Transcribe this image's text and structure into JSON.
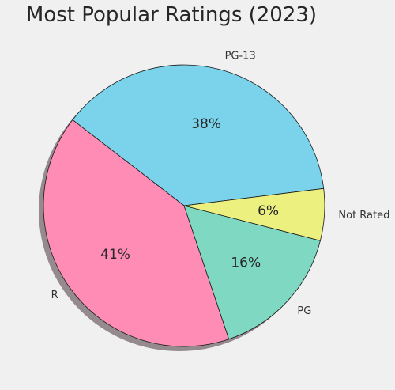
{
  "chart_data": {
    "type": "pie",
    "title": "Most Popular Ratings (2023)",
    "slices": [
      {
        "label": "PG-13",
        "value": 38,
        "pct_label": "38%",
        "color": "#7ad3ea"
      },
      {
        "label": "R",
        "value": 41,
        "pct_label": "41%",
        "color": "#ff8cb4"
      },
      {
        "label": "PG",
        "value": 16,
        "pct_label": "16%",
        "color": "#7fd8c2"
      },
      {
        "label": "Not Rated",
        "value": 6,
        "pct_label": "6%",
        "color": "#ecf07f"
      }
    ],
    "shadow": true,
    "start_angle_deg": 7,
    "direction": "counterclockwise"
  }
}
